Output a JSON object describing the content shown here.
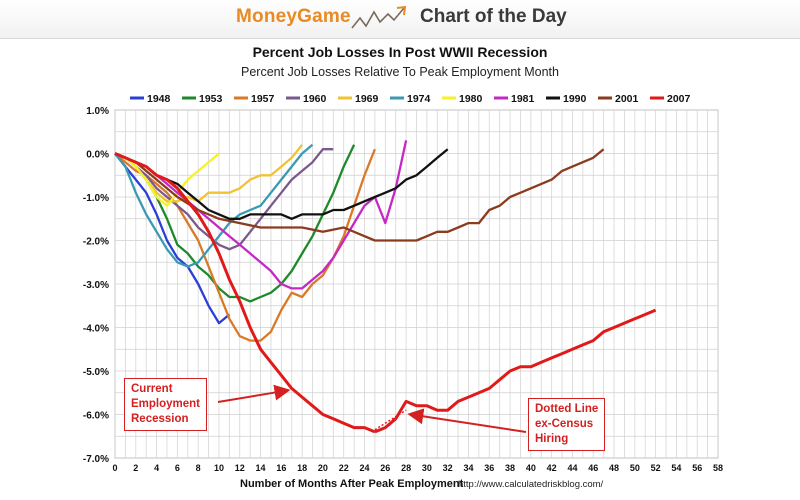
{
  "banner": {
    "brand": "MoneyGame",
    "icon": "upward-trend-arrow-icon",
    "tagline": "Chart of the Day"
  },
  "footer": {
    "source": "http://www.calculatedriskblog.com/"
  },
  "chart_data": {
    "type": "line",
    "title": "Percent Job Losses In Post WWII Recession",
    "subtitle": "Percent Job Losses Relative To Peak Employment Month",
    "xlabel": "Number of Months After Peak Employment",
    "ylabel": "",
    "xlim": [
      0,
      58
    ],
    "ylim": [
      -7.0,
      1.0
    ],
    "xticks": [
      0,
      2,
      4,
      6,
      8,
      10,
      12,
      14,
      16,
      18,
      20,
      22,
      24,
      26,
      28,
      30,
      32,
      34,
      36,
      38,
      40,
      42,
      44,
      46,
      48,
      50,
      52,
      54,
      56,
      58
    ],
    "yticks": [
      1.0,
      0.0,
      -1.0,
      -2.0,
      -3.0,
      -4.0,
      -5.0,
      -6.0,
      -7.0
    ],
    "ytick_labels": [
      "1.0%",
      "0.0%",
      "-1.0%",
      "-2.0%",
      "-3.0%",
      "-4.0%",
      "-5.0%",
      "-6.0%",
      "-7.0%"
    ],
    "grid": true,
    "legend_position": "top",
    "series": [
      {
        "name": "1948",
        "color": "#2b3fd6",
        "x": [
          0,
          1,
          2,
          3,
          4,
          5,
          6,
          7,
          8,
          9,
          10,
          11
        ],
        "y": [
          0,
          -0.3,
          -0.6,
          -0.9,
          -1.4,
          -2.0,
          -2.4,
          -2.6,
          -3.0,
          -3.5,
          -3.9,
          -3.7
        ]
      },
      {
        "name": "1953",
        "color": "#1e8a2a",
        "x": [
          0,
          1,
          2,
          3,
          4,
          5,
          6,
          7,
          8,
          9,
          10,
          11,
          12,
          13,
          14,
          15,
          16,
          17,
          18,
          19,
          20,
          21,
          22,
          23
        ],
        "y": [
          0,
          -0.1,
          -0.3,
          -0.6,
          -1.0,
          -1.5,
          -2.1,
          -2.3,
          -2.6,
          -2.8,
          -3.1,
          -3.3,
          -3.3,
          -3.4,
          -3.3,
          -3.2,
          -3.0,
          -2.7,
          -2.3,
          -1.9,
          -1.4,
          -0.9,
          -0.3,
          0.2
        ]
      },
      {
        "name": "1957",
        "color": "#d97a28",
        "x": [
          0,
          1,
          2,
          3,
          4,
          5,
          6,
          7,
          8,
          9,
          10,
          11,
          12,
          13,
          14,
          15,
          16,
          17,
          18,
          19,
          20,
          21,
          22,
          23,
          24,
          25
        ],
        "y": [
          0,
          -0.2,
          -0.4,
          -0.5,
          -0.7,
          -0.9,
          -1.2,
          -1.6,
          -2.0,
          -2.6,
          -3.2,
          -3.8,
          -4.2,
          -4.3,
          -4.3,
          -4.1,
          -3.6,
          -3.2,
          -3.3,
          -3.0,
          -2.8,
          -2.4,
          -1.9,
          -1.2,
          -0.5,
          0.1
        ]
      },
      {
        "name": "1960",
        "color": "#7a5a8c",
        "x": [
          0,
          1,
          2,
          3,
          4,
          5,
          6,
          7,
          8,
          9,
          10,
          11,
          12,
          13,
          14,
          15,
          16,
          17,
          18,
          19,
          20,
          21
        ],
        "y": [
          0,
          -0.1,
          -0.3,
          -0.5,
          -0.8,
          -1.0,
          -1.2,
          -1.4,
          -1.7,
          -1.9,
          -2.1,
          -2.2,
          -2.1,
          -1.8,
          -1.5,
          -1.2,
          -0.9,
          -0.6,
          -0.4,
          -0.2,
          0.1,
          0.1
        ]
      },
      {
        "name": "1969",
        "color": "#f1c232",
        "x": [
          0,
          1,
          2,
          3,
          4,
          5,
          6,
          7,
          8,
          9,
          10,
          11,
          12,
          13,
          14,
          15,
          16,
          17,
          18
        ],
        "y": [
          0,
          -0.1,
          -0.3,
          -0.6,
          -0.9,
          -1.1,
          -1.1,
          -1.0,
          -1.1,
          -0.9,
          -0.9,
          -0.9,
          -0.8,
          -0.6,
          -0.5,
          -0.5,
          -0.3,
          -0.1,
          0.2
        ]
      },
      {
        "name": "1974",
        "color": "#3a9ab4",
        "x": [
          0,
          1,
          2,
          3,
          4,
          5,
          6,
          7,
          8,
          9,
          10,
          11,
          12,
          13,
          14,
          15,
          16,
          17,
          18,
          19
        ],
        "y": [
          0,
          -0.3,
          -0.9,
          -1.4,
          -1.8,
          -2.2,
          -2.5,
          -2.6,
          -2.5,
          -2.2,
          -1.9,
          -1.6,
          -1.4,
          -1.3,
          -1.2,
          -0.9,
          -0.6,
          -0.3,
          0.0,
          0.2
        ]
      },
      {
        "name": "1980",
        "color": "#f5f22a",
        "x": [
          0,
          1,
          2,
          3,
          4,
          5,
          6,
          7,
          8,
          9,
          10
        ],
        "y": [
          0,
          -0.1,
          -0.3,
          -0.6,
          -1.0,
          -1.2,
          -0.9,
          -0.6,
          -0.4,
          -0.2,
          0.0
        ]
      },
      {
        "name": "1981",
        "color": "#c429c4",
        "x": [
          0,
          1,
          2,
          3,
          4,
          5,
          6,
          7,
          8,
          9,
          10,
          11,
          12,
          13,
          14,
          15,
          16,
          17,
          18,
          19,
          20,
          21,
          22,
          23,
          24,
          25,
          26,
          27,
          28
        ],
        "y": [
          0,
          -0.1,
          -0.2,
          -0.3,
          -0.5,
          -0.7,
          -0.9,
          -1.1,
          -1.3,
          -1.5,
          -1.7,
          -1.9,
          -2.1,
          -2.3,
          -2.5,
          -2.7,
          -3.0,
          -3.1,
          -3.1,
          -2.9,
          -2.7,
          -2.4,
          -2.0,
          -1.6,
          -1.2,
          -1.0,
          -1.6,
          -0.8,
          0.3
        ]
      },
      {
        "name": "1990",
        "color": "#111111",
        "x": [
          0,
          1,
          2,
          3,
          4,
          5,
          6,
          7,
          8,
          9,
          10,
          11,
          12,
          13,
          14,
          15,
          16,
          17,
          18,
          19,
          20,
          21,
          22,
          23,
          24,
          25,
          26,
          27,
          28,
          29,
          30,
          31,
          32
        ],
        "y": [
          0,
          -0.1,
          -0.2,
          -0.3,
          -0.5,
          -0.6,
          -0.7,
          -0.9,
          -1.1,
          -1.3,
          -1.4,
          -1.5,
          -1.5,
          -1.4,
          -1.4,
          -1.4,
          -1.4,
          -1.5,
          -1.4,
          -1.4,
          -1.4,
          -1.3,
          -1.3,
          -1.2,
          -1.1,
          -1.0,
          -0.9,
          -0.8,
          -0.6,
          -0.5,
          -0.3,
          -0.1,
          0.1
        ]
      },
      {
        "name": "2001",
        "color": "#8b3b1e",
        "x": [
          0,
          2,
          4,
          6,
          8,
          10,
          12,
          14,
          16,
          18,
          20,
          22,
          24,
          25,
          26,
          27,
          28,
          29,
          30,
          31,
          32,
          33,
          34,
          35,
          36,
          37,
          38,
          39,
          40,
          41,
          42,
          43,
          44,
          45,
          46,
          47
        ],
        "y": [
          0,
          -0.2,
          -0.6,
          -1.0,
          -1.3,
          -1.5,
          -1.6,
          -1.7,
          -1.7,
          -1.7,
          -1.8,
          -1.7,
          -1.9,
          -2.0,
          -2.0,
          -2.0,
          -2.0,
          -2.0,
          -1.9,
          -1.8,
          -1.8,
          -1.7,
          -1.6,
          -1.6,
          -1.3,
          -1.2,
          -1.0,
          -0.9,
          -0.8,
          -0.7,
          -0.6,
          -0.4,
          -0.3,
          -0.2,
          -0.1,
          0.1
        ]
      },
      {
        "name": "2007",
        "color": "#e01a1a",
        "x": [
          0,
          1,
          2,
          3,
          4,
          5,
          6,
          7,
          8,
          9,
          10,
          11,
          12,
          13,
          14,
          15,
          16,
          17,
          18,
          19,
          20,
          21,
          22,
          23,
          24,
          25,
          26,
          27,
          28,
          29,
          30,
          31,
          32,
          33,
          34,
          35,
          36,
          37,
          38,
          39,
          40,
          41,
          42,
          43,
          44,
          45,
          46,
          47,
          48,
          49,
          50,
          51,
          52
        ],
        "y": [
          0,
          -0.1,
          -0.2,
          -0.3,
          -0.5,
          -0.6,
          -0.8,
          -1.1,
          -1.4,
          -1.8,
          -2.3,
          -2.9,
          -3.4,
          -4.0,
          -4.5,
          -4.8,
          -5.1,
          -5.4,
          -5.6,
          -5.8,
          -6.0,
          -6.1,
          -6.2,
          -6.3,
          -6.3,
          -6.4,
          -6.3,
          -6.1,
          -5.7,
          -5.8,
          -5.8,
          -5.9,
          -5.9,
          -5.7,
          -5.6,
          -5.5,
          -5.4,
          -5.2,
          -5.0,
          -4.9,
          -4.9,
          -4.8,
          -4.7,
          -4.6,
          -4.5,
          -4.4,
          -4.3,
          -4.1,
          -4.0,
          -3.9,
          -3.8,
          -3.7,
          -3.6
        ]
      }
    ],
    "dotted_segment": {
      "series": "2007",
      "x": [
        25,
        28
      ],
      "y": [
        -6.35,
        -5.9
      ]
    },
    "annotations": [
      {
        "id": "current",
        "lines": [
          "Current",
          "Employment",
          "Recession"
        ],
        "points_to": {
          "x": 16.5,
          "y": -5.45
        }
      },
      {
        "id": "dotted",
        "lines": [
          "Dotted Line",
          "ex-Census",
          "Hiring"
        ],
        "points_to": {
          "x": 28.5,
          "y": -6.0
        }
      }
    ]
  }
}
